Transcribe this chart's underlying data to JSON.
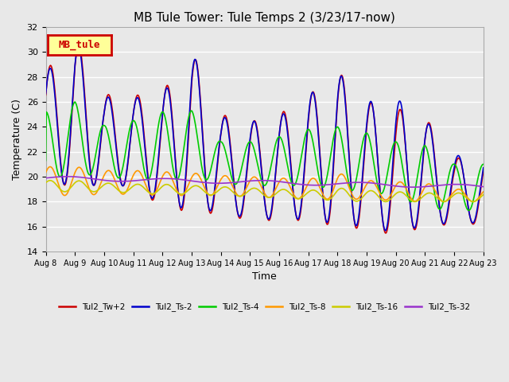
{
  "title": "MB Tule Tower: Tule Temps 2 (3/23/17-now)",
  "xlabel": "Time",
  "ylabel": "Temperature (C)",
  "ylim": [
    14,
    32
  ],
  "yticks": [
    14,
    16,
    18,
    20,
    22,
    24,
    26,
    28,
    30,
    32
  ],
  "x_labels": [
    "Aug 8",
    "Aug 9",
    "Aug 10",
    "Aug 11",
    "Aug 12",
    "Aug 13",
    "Aug 14",
    "Aug 15",
    "Aug 16",
    "Aug 17",
    "Aug 18",
    "Aug 19",
    "Aug 20",
    "Aug 21",
    "Aug 22",
    "Aug 23"
  ],
  "bg_color": "#e8e8e8",
  "grid_color": "#ffffff",
  "series": {
    "Tul2_Tw+2": {
      "color": "#cc0000",
      "lw": 1.2
    },
    "Tul2_Ts-2": {
      "color": "#0000cc",
      "lw": 1.2
    },
    "Tul2_Ts-4": {
      "color": "#00cc00",
      "lw": 1.2
    },
    "Tul2_Ts-8": {
      "color": "#ff9900",
      "lw": 1.2
    },
    "Tul2_Ts-16": {
      "color": "#cccc00",
      "lw": 1.2
    },
    "Tul2_Ts-32": {
      "color": "#9933cc",
      "lw": 1.2
    }
  },
  "legend_label": "MB_tule",
  "legend_bg": "#ffff99",
  "legend_border": "#cc0000"
}
